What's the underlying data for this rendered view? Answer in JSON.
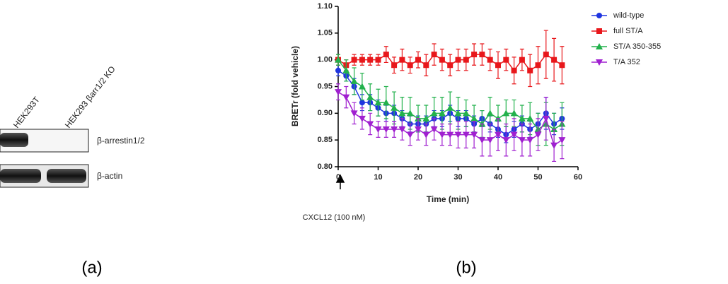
{
  "blot": {
    "lanes": [
      "HEK293T",
      "HEK293 βarr1/2 KO"
    ],
    "bands": [
      "β-arrestin1/2",
      "β-actin"
    ],
    "panel_label": "(a)"
  },
  "chart_data": {
    "type": "line",
    "ylabel": "BRETr (fold vehicle)",
    "xlabel": "Time (min)",
    "annotation": "CXCL12 (100 nM)",
    "panel_label": "(b)",
    "xlim": [
      0,
      60
    ],
    "xticks": [
      0,
      10,
      20,
      30,
      40,
      50,
      60
    ],
    "ylim": [
      0.8,
      1.1
    ],
    "yticks": [
      {
        "value": 0.8,
        "label": "0.80"
      },
      {
        "value": 0.85,
        "label": "0.85"
      },
      {
        "value": 0.9,
        "label": "0.90"
      },
      {
        "value": 0.95,
        "label": "0.95"
      },
      {
        "value": 1.0,
        "label": "1.00"
      },
      {
        "value": 1.05,
        "label": "1.05"
      },
      {
        "value": 1.1,
        "label": "1.10"
      }
    ],
    "legend": "upper right",
    "x": [
      0,
      2,
      4,
      6,
      8,
      10,
      12,
      14,
      16,
      18,
      20,
      22,
      24,
      26,
      28,
      30,
      32,
      34,
      36,
      38,
      40,
      42,
      44,
      46,
      48,
      50,
      52,
      54,
      56
    ],
    "series": [
      {
        "name": "wild-type",
        "color": "#1f35e0",
        "marker": "circle",
        "values": [
          0.98,
          0.97,
          0.95,
          0.92,
          0.92,
          0.91,
          0.9,
          0.9,
          0.89,
          0.88,
          0.88,
          0.88,
          0.89,
          0.89,
          0.9,
          0.89,
          0.89,
          0.88,
          0.89,
          0.88,
          0.87,
          0.86,
          0.87,
          0.88,
          0.87,
          0.88,
          0.9,
          0.88,
          0.89
        ],
        "errors": [
          0.01,
          0.01,
          0.015,
          0.015,
          0.015,
          0.015,
          0.015,
          0.015,
          0.015,
          0.015,
          0.015,
          0.015,
          0.015,
          0.015,
          0.015,
          0.015,
          0.015,
          0.015,
          0.015,
          0.015,
          0.015,
          0.015,
          0.015,
          0.015,
          0.015,
          0.02,
          0.03,
          0.02,
          0.02
        ]
      },
      {
        "name": "full ST/A",
        "color": "#e8171b",
        "marker": "square",
        "values": [
          1.0,
          0.99,
          1.0,
          1.0,
          1.0,
          1.0,
          1.01,
          0.99,
          1.0,
          0.99,
          1.0,
          0.99,
          1.01,
          1.0,
          0.99,
          1.0,
          1.0,
          1.01,
          1.01,
          1.0,
          0.99,
          1.0,
          0.98,
          1.0,
          0.98,
          0.99,
          1.01,
          1.0,
          0.99
        ],
        "errors": [
          0.01,
          0.01,
          0.01,
          0.01,
          0.01,
          0.01,
          0.015,
          0.015,
          0.02,
          0.015,
          0.015,
          0.02,
          0.02,
          0.02,
          0.02,
          0.02,
          0.02,
          0.02,
          0.02,
          0.02,
          0.025,
          0.02,
          0.025,
          0.02,
          0.03,
          0.035,
          0.045,
          0.04,
          0.035
        ]
      },
      {
        "name": "ST/A 350-355",
        "color": "#22b14c",
        "marker": "triangle-up",
        "values": [
          1.0,
          0.98,
          0.96,
          0.95,
          0.93,
          0.92,
          0.92,
          0.91,
          0.9,
          0.9,
          0.89,
          0.89,
          0.9,
          0.9,
          0.91,
          0.9,
          0.9,
          0.89,
          0.88,
          0.9,
          0.89,
          0.9,
          0.9,
          0.89,
          0.89,
          0.87,
          0.88,
          0.87,
          0.88
        ],
        "errors": [
          0.01,
          0.02,
          0.025,
          0.025,
          0.025,
          0.025,
          0.03,
          0.03,
          0.03,
          0.03,
          0.025,
          0.025,
          0.03,
          0.03,
          0.03,
          0.03,
          0.025,
          0.025,
          0.025,
          0.03,
          0.025,
          0.025,
          0.025,
          0.025,
          0.03,
          0.03,
          0.04,
          0.03,
          0.04
        ]
      },
      {
        "name": "T/A 352",
        "color": "#a020d0",
        "marker": "triangle-down",
        "values": [
          0.94,
          0.93,
          0.9,
          0.89,
          0.88,
          0.87,
          0.87,
          0.87,
          0.87,
          0.86,
          0.87,
          0.86,
          0.87,
          0.86,
          0.86,
          0.86,
          0.86,
          0.86,
          0.85,
          0.85,
          0.86,
          0.85,
          0.86,
          0.85,
          0.85,
          0.86,
          0.89,
          0.84,
          0.85
        ],
        "errors": [
          0.015,
          0.02,
          0.02,
          0.02,
          0.02,
          0.015,
          0.015,
          0.015,
          0.02,
          0.02,
          0.02,
          0.02,
          0.02,
          0.02,
          0.02,
          0.025,
          0.025,
          0.025,
          0.03,
          0.03,
          0.03,
          0.03,
          0.03,
          0.03,
          0.03,
          0.03,
          0.04,
          0.03,
          0.035
        ]
      }
    ]
  }
}
